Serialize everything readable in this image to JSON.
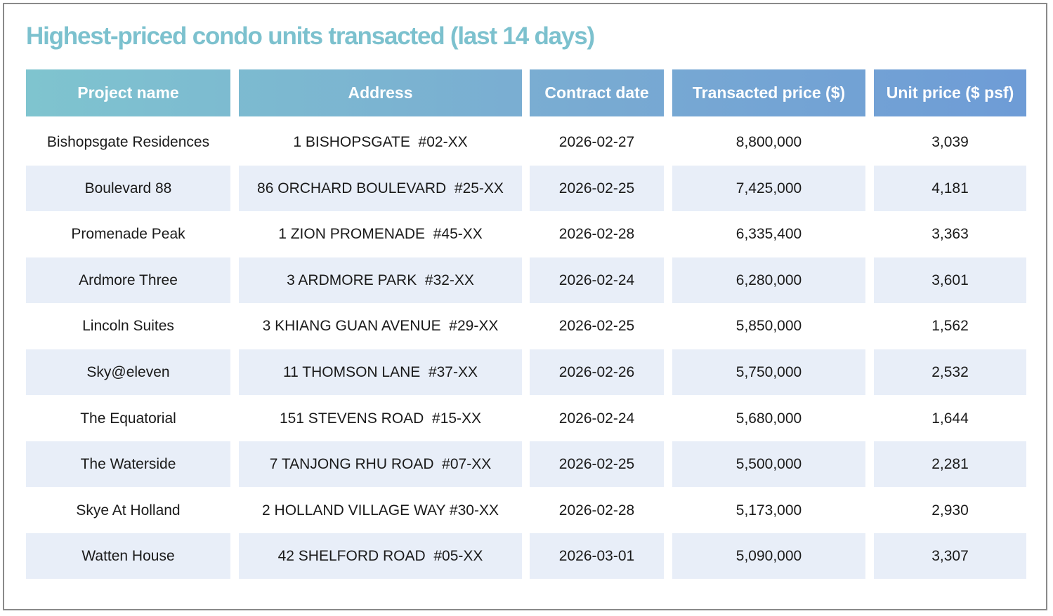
{
  "title": "Highest-priced condo units transacted (last 14 days)",
  "table": {
    "header": [
      "Project name",
      "Address",
      "Contract date",
      "Transacted price ($)",
      "Unit price ($ psf)"
    ],
    "rows": [
      [
        "Bishopsgate Residences",
        "1 BISHOPSGATE  #02-XX",
        "2026-02-27",
        "8,800,000",
        "3,039"
      ],
      [
        "Boulevard 88",
        "86 ORCHARD BOULEVARD  #25-XX",
        "2026-02-25",
        "7,425,000",
        "4,181"
      ],
      [
        "Promenade Peak",
        "1 ZION PROMENADE  #45-XX",
        "2026-02-28",
        "6,335,400",
        "3,363"
      ],
      [
        "Ardmore Three",
        "3 ARDMORE PARK  #32-XX",
        "2026-02-24",
        "6,280,000",
        "3,601"
      ],
      [
        "Lincoln Suites",
        "3 KHIANG GUAN AVENUE  #29-XX",
        "2026-02-25",
        "5,850,000",
        "1,562"
      ],
      [
        "Sky@eleven",
        "11 THOMSON LANE  #37-XX",
        "2026-02-26",
        "5,750,000",
        "2,532"
      ],
      [
        "The Equatorial",
        "151 STEVENS ROAD  #15-XX",
        "2026-02-24",
        "5,680,000",
        "1,644"
      ],
      [
        "The Waterside",
        "7 TANJONG RHU ROAD  #07-XX",
        "2026-02-25",
        "5,500,000",
        "2,281"
      ],
      [
        "Skye At Holland",
        "2 HOLLAND VILLAGE WAY #30-XX",
        "2026-02-28",
        "5,173,000",
        "2,930"
      ],
      [
        "Watten House",
        "42 SHELFORD ROAD  #05-XX",
        "2026-03-01",
        "5,090,000",
        "3,307"
      ]
    ]
  }
}
